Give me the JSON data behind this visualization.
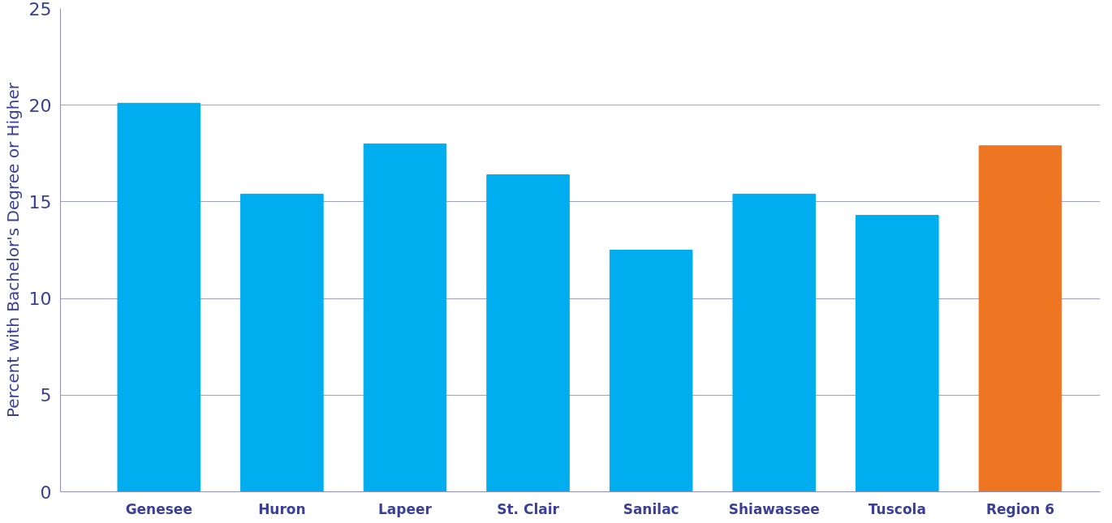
{
  "chart_data": {
    "type": "bar",
    "ylabel": "Percent with Bachelor's Degree or Higher",
    "categories": [
      "Genesee",
      "Huron",
      "Lapeer",
      "St. Clair",
      "Sanilac",
      "Shiawassee",
      "Tuscola",
      "Region 6"
    ],
    "values": [
      20.1,
      15.4,
      18.0,
      16.4,
      12.5,
      15.4,
      14.3,
      17.9
    ],
    "colors": [
      "#00aeef",
      "#00aeef",
      "#00aeef",
      "#00aeef",
      "#00aeef",
      "#00aeef",
      "#00aeef",
      "#ee7623"
    ],
    "ylim": [
      0,
      25
    ],
    "yticks": [
      0,
      5,
      10,
      15,
      20,
      25
    ],
    "grid": "y"
  }
}
